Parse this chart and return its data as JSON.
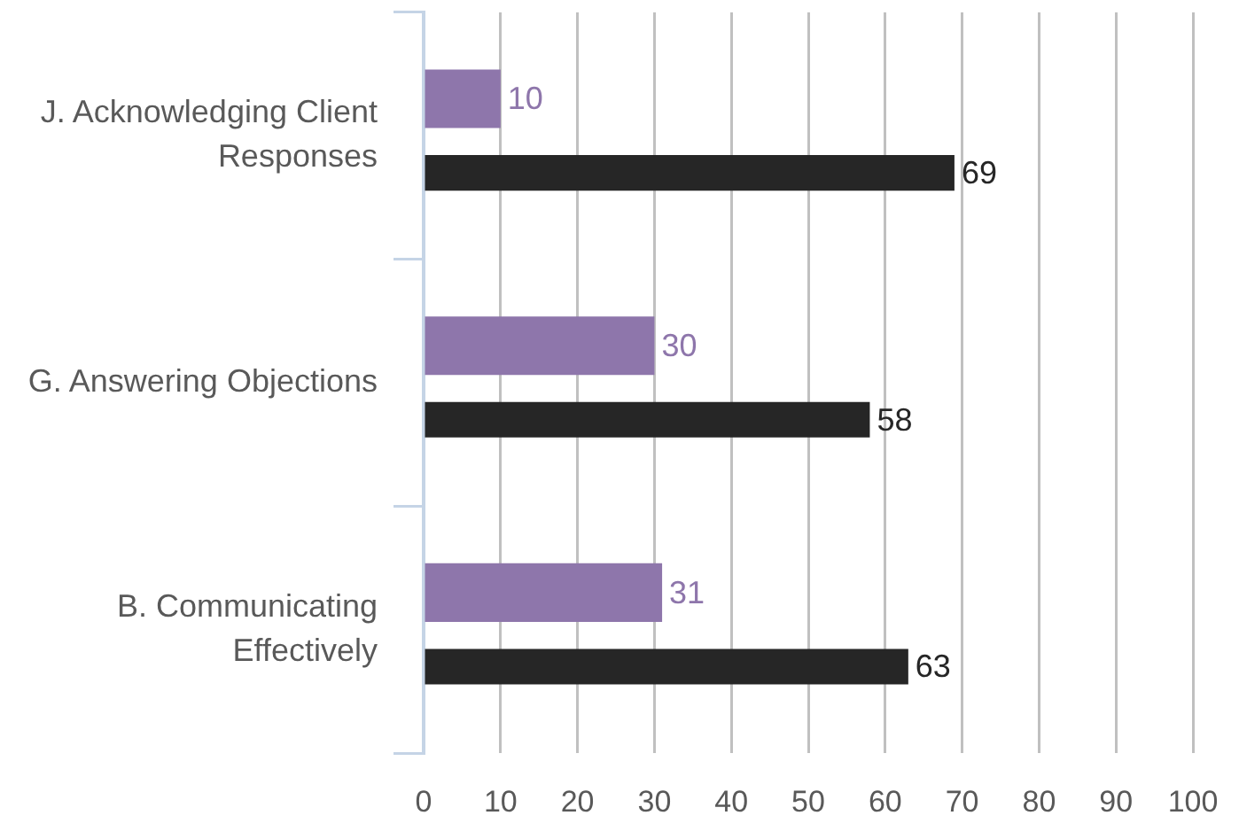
{
  "chart_data": {
    "type": "bar",
    "orientation": "horizontal",
    "categories": [
      "J. Acknowledging Client Responses",
      "G. Answering Objections",
      "B. Communicating Effectively"
    ],
    "series": [
      {
        "color": "#8e76ab",
        "values": [
          10,
          30,
          31
        ]
      },
      {
        "color": "#262626",
        "values": [
          69,
          58,
          63
        ]
      }
    ],
    "xlim": [
      0,
      100
    ],
    "xticks": [
      0,
      10,
      20,
      30,
      40,
      50,
      60,
      70,
      80,
      90,
      100
    ],
    "grid": "x",
    "data_labels": true
  }
}
